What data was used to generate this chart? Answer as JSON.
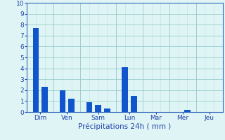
{
  "bar_values": [
    7.7,
    2.3,
    2.0,
    1.2,
    0.9,
    0.65,
    0.3,
    4.1,
    1.5,
    0.2
  ],
  "bar_positions": [
    1,
    2,
    4,
    5,
    7,
    8,
    9,
    11,
    12,
    18
  ],
  "bar_width": 0.7,
  "bar_color": "#1155cc",
  "day_labels": [
    "Dim",
    "Ven",
    "Sam",
    "Lun",
    "Mar",
    "Mer",
    "Jeu"
  ],
  "day_tick_pos": [
    1.5,
    4.5,
    8.0,
    11.5,
    14.5,
    17.5,
    20.5
  ],
  "day_sep_pos": [
    3.0,
    6.0,
    10.0,
    13.0,
    16.0,
    19.0
  ],
  "xlabel": "Précipitations 24h ( mm )",
  "ylim": [
    0,
    10
  ],
  "yticks": [
    0,
    1,
    2,
    3,
    4,
    5,
    6,
    7,
    8,
    9,
    10
  ],
  "xlim": [
    0,
    22
  ],
  "background_color": "#dff5f5",
  "grid_color": "#99cccc",
  "axis_color": "#3366bb",
  "label_color": "#2244aa",
  "tick_color": "#2244aa",
  "tick_fontsize": 6.5,
  "xlabel_fontsize": 7.5
}
